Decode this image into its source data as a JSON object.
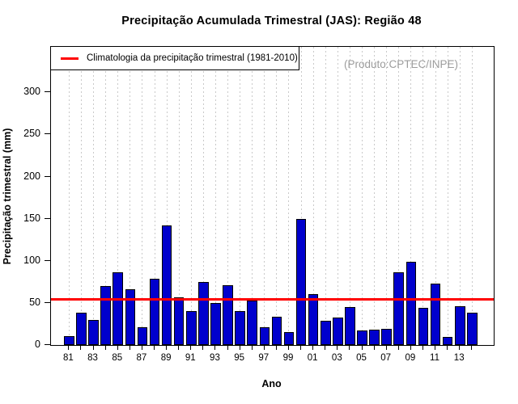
{
  "title": "Precipitação Acumulada Trimestral (JAS): Região 48",
  "watermark": "(Produto:CPTEC/INPE)",
  "legend": {
    "label": "Climatologia da precipitação trimestral (1981-2010)"
  },
  "colors": {
    "bar_fill": "#0000CD",
    "bar_border": "#000000",
    "climatology_line": "#FF0000",
    "grid": "#C9C9C9",
    "watermark_text": "#9C9C9C"
  },
  "chart_data": {
    "type": "bar",
    "title": "Precipitação Acumulada Trimestral (JAS): Região 48",
    "xlabel": "Ano",
    "ylabel": "Precipitação trimestral (mm)",
    "categories": [
      1981,
      1982,
      1983,
      1984,
      1985,
      1986,
      1987,
      1988,
      1989,
      1990,
      1991,
      1992,
      1993,
      1994,
      1995,
      1996,
      1997,
      1998,
      1999,
      2000,
      2001,
      2002,
      2003,
      2004,
      2005,
      2006,
      2007,
      2008,
      2009,
      2010,
      2011,
      2012,
      2013,
      2014
    ],
    "values": [
      11,
      38,
      30,
      70,
      86,
      66,
      21,
      79,
      142,
      57,
      40,
      75,
      50,
      71,
      40,
      53,
      21,
      34,
      15,
      150,
      60,
      29,
      33,
      45,
      17,
      18,
      19,
      86,
      99,
      44,
      73,
      10,
      46,
      38
    ],
    "climatology": {
      "label": "Climatologia da precipitação trimestral (1981-2010)",
      "value": 54
    },
    "yticks": [
      0,
      50,
      100,
      150,
      200,
      250,
      300
    ],
    "ylim": [
      0,
      354
    ],
    "xtick_labels": [
      "81",
      "83",
      "85",
      "87",
      "89",
      "91",
      "93",
      "95",
      "97",
      "99",
      "01",
      "03",
      "05",
      "07",
      "09",
      "11",
      "13"
    ],
    "grid": "vertical-dotted",
    "legend_position": "top-left"
  }
}
